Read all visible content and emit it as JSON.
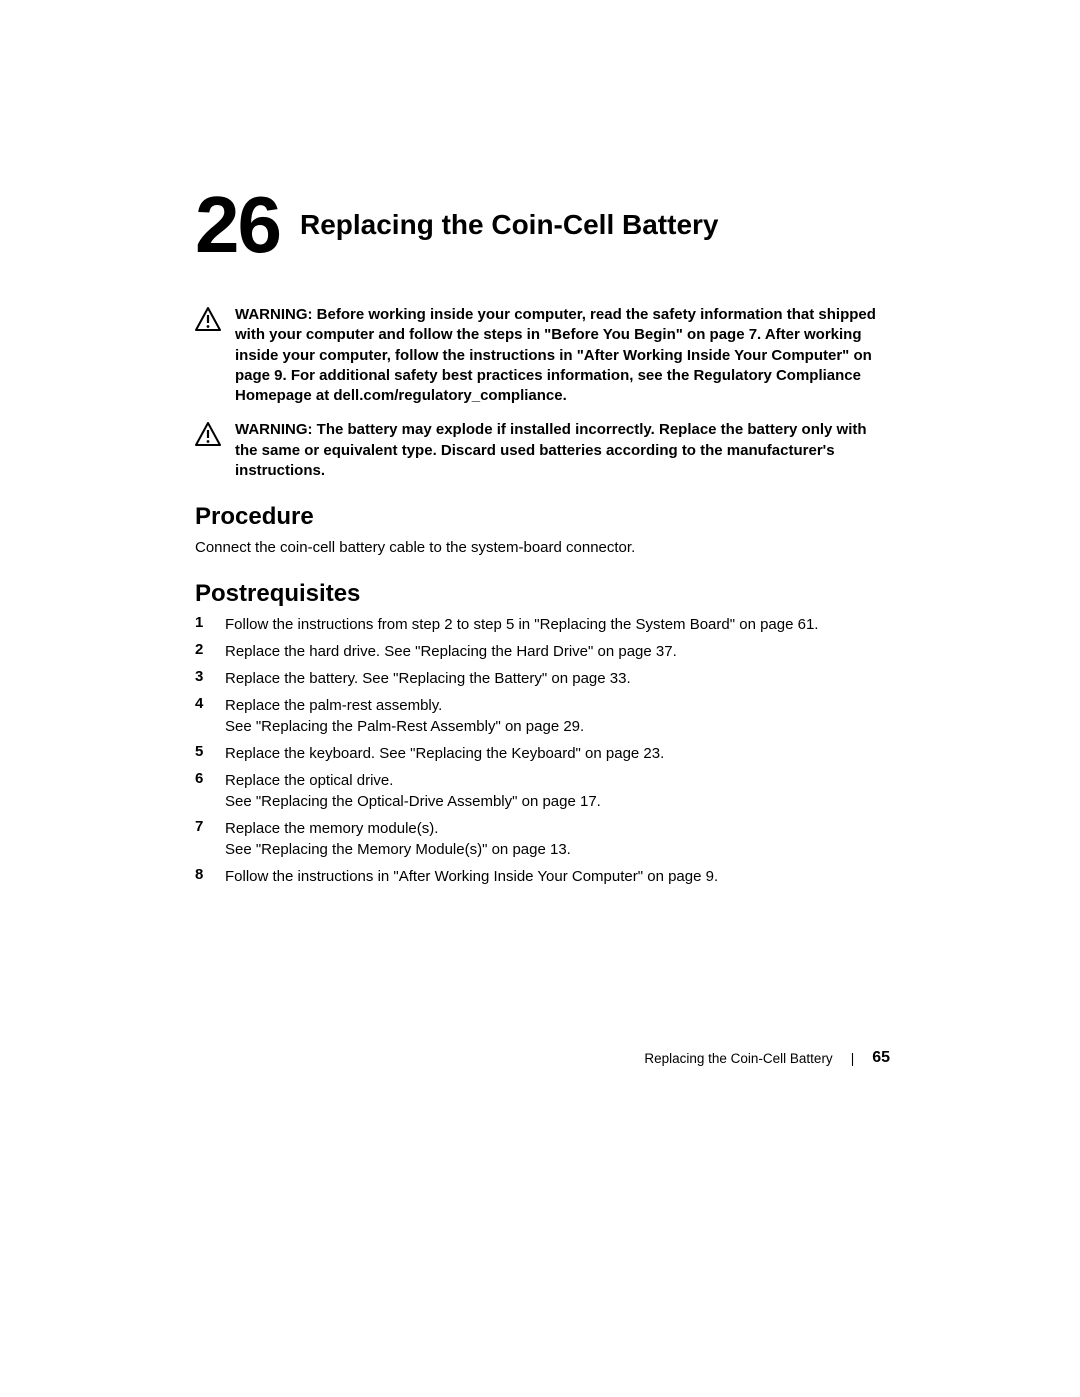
{
  "chapter": {
    "number": "26",
    "title": "Replacing the Coin-Cell Battery"
  },
  "warnings": [
    {
      "text": "WARNING:  Before working inside your computer, read the safety information that shipped with your computer and follow the steps in \"Before You Begin\" on page 7. After working inside your computer, follow the instructions in \"After Working Inside Your Computer\" on page 9. For additional safety best practices information, see the Regulatory Compliance Homepage at dell.com/regulatory_compliance."
    },
    {
      "text": "WARNING:  The battery may explode if installed incorrectly. Replace the battery only with the same or equivalent type. Discard used batteries according to the manufacturer's instructions."
    }
  ],
  "procedure": {
    "heading": "Procedure",
    "text": "Connect the coin-cell battery cable to the system-board connector."
  },
  "postreq": {
    "heading": "Postrequisites",
    "items": [
      "Follow the instructions from step 2 to step 5 in \"Replacing the System Board\" on page 61.",
      "Replace the hard drive. See \"Replacing the Hard Drive\" on page 37.",
      "Replace the battery. See \"Replacing the Battery\" on page 33.",
      "Replace the palm-rest assembly.\nSee \"Replacing the Palm-Rest Assembly\" on page 29.",
      "Replace the keyboard. See \"Replacing the Keyboard\" on page 23.",
      "Replace the optical drive.\nSee \"Replacing the Optical-Drive Assembly\" on page 17.",
      "Replace the memory module(s).\nSee \"Replacing the Memory Module(s)\" on page 13.",
      "Follow the instructions in \"After Working Inside Your Computer\" on page 9."
    ]
  },
  "footer": {
    "title": "Replacing the Coin-Cell Battery",
    "page": "65"
  },
  "style": {
    "text_color": "#000000",
    "bg_color": "#ffffff",
    "chapter_number_fontsize": 80,
    "chapter_title_fontsize": 28,
    "section_title_fontsize": 24,
    "body_fontsize": 15,
    "footer_fontsize": 13.5
  }
}
